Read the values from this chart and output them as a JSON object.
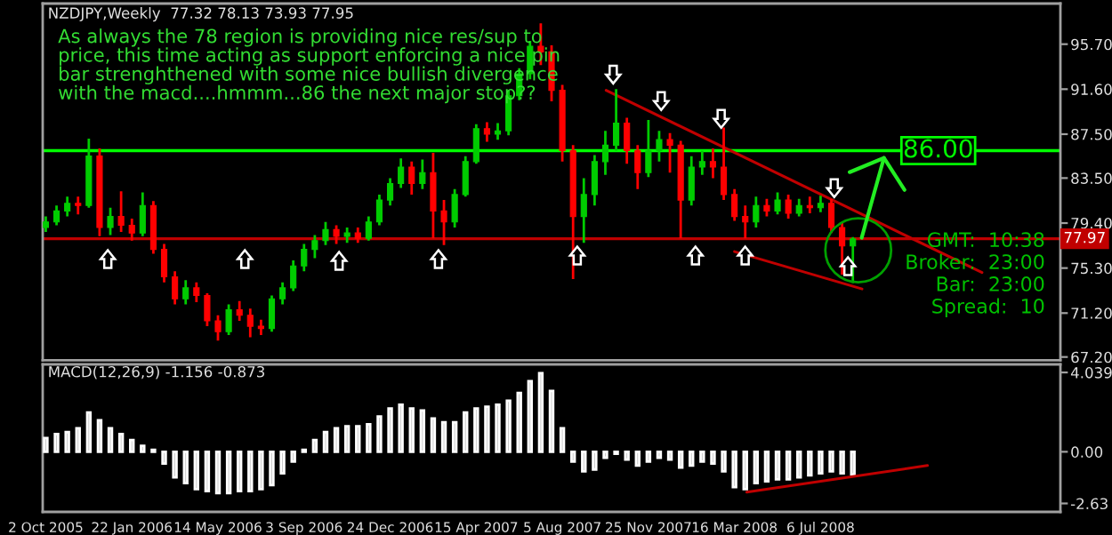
{
  "chart_data": [
    {
      "type": "candlestick",
      "title": "NZDJPY,Weekly  77.32 78.13 73.93 77.95",
      "x": [
        "2005-10-02",
        "2005-10-16",
        "2005-10-30",
        "2005-11-13",
        "2005-11-27",
        "2005-12-11",
        "2005-12-25",
        "2006-01-08",
        "2006-01-22",
        "2006-02-05",
        "2006-02-19",
        "2006-03-05",
        "2006-03-19",
        "2006-04-02",
        "2006-04-16",
        "2006-04-30",
        "2006-05-14",
        "2006-05-28",
        "2006-06-11",
        "2006-06-25",
        "2006-07-09",
        "2006-07-23",
        "2006-08-06",
        "2006-08-20",
        "2006-09-03",
        "2006-09-17",
        "2006-10-01",
        "2006-10-15",
        "2006-10-29",
        "2006-11-12",
        "2006-11-26",
        "2006-12-10",
        "2006-12-24",
        "2007-01-07",
        "2007-01-21",
        "2007-02-04",
        "2007-02-18",
        "2007-03-04",
        "2007-03-18",
        "2007-04-01",
        "2007-04-15",
        "2007-04-29",
        "2007-05-13",
        "2007-05-27",
        "2007-06-10",
        "2007-06-24",
        "2007-07-08",
        "2007-07-22",
        "2007-08-05",
        "2007-08-19",
        "2007-09-02",
        "2007-09-16",
        "2007-09-30",
        "2007-10-14",
        "2007-10-28",
        "2007-11-11",
        "2007-11-25",
        "2007-12-09",
        "2007-12-23",
        "2008-01-06",
        "2008-01-20",
        "2008-02-03",
        "2008-02-17",
        "2008-03-02",
        "2008-03-16",
        "2008-03-30",
        "2008-04-13",
        "2008-04-27",
        "2008-05-11",
        "2008-05-25",
        "2008-06-08",
        "2008-06-22",
        "2008-07-06",
        "2008-07-20",
        "2008-08-03",
        "2008-08-17"
      ],
      "ohlc": [
        [
          79.0,
          80.0,
          78.6,
          79.5
        ],
        [
          79.5,
          81.0,
          79.2,
          80.5
        ],
        [
          80.5,
          81.8,
          80.0,
          81.2
        ],
        [
          81.2,
          81.8,
          80.2,
          81.0
        ],
        [
          81.0,
          87.1,
          80.8,
          85.5
        ],
        [
          85.5,
          86.2,
          78.2,
          79.0
        ],
        [
          79.0,
          80.8,
          78.3,
          80.0
        ],
        [
          80.0,
          82.3,
          78.6,
          79.2
        ],
        [
          79.2,
          79.8,
          77.8,
          78.5
        ],
        [
          78.5,
          82.2,
          78.2,
          81.0
        ],
        [
          81.0,
          81.4,
          76.6,
          77.0
        ],
        [
          77.0,
          77.5,
          74.0,
          74.5
        ],
        [
          74.5,
          75.0,
          72.0,
          72.5
        ],
        [
          72.5,
          74.2,
          72.0,
          73.5
        ],
        [
          73.5,
          74.0,
          72.2,
          72.8
        ],
        [
          72.8,
          73.0,
          70.0,
          70.5
        ],
        [
          70.5,
          71.0,
          68.7,
          69.5
        ],
        [
          69.5,
          72.0,
          69.2,
          71.5
        ],
        [
          71.5,
          72.3,
          70.5,
          71.0
        ],
        [
          71.0,
          71.6,
          69.0,
          70.0
        ],
        [
          70.0,
          70.6,
          69.2,
          69.8
        ],
        [
          69.8,
          72.8,
          69.5,
          72.5
        ],
        [
          72.5,
          74.0,
          72.0,
          73.5
        ],
        [
          73.5,
          76.0,
          73.2,
          75.5
        ],
        [
          75.5,
          77.5,
          75.0,
          77.0
        ],
        [
          77.0,
          78.3,
          76.2,
          77.8
        ],
        [
          77.8,
          79.5,
          77.4,
          78.8
        ],
        [
          78.8,
          79.2,
          77.5,
          78.2
        ],
        [
          78.2,
          79.0,
          77.6,
          78.5
        ],
        [
          78.5,
          79.0,
          77.6,
          78.0
        ],
        [
          78.0,
          80.0,
          77.8,
          79.5
        ],
        [
          79.5,
          82.0,
          79.2,
          81.5
        ],
        [
          81.5,
          83.5,
          81.0,
          83.0
        ],
        [
          83.0,
          85.3,
          82.6,
          84.5
        ],
        [
          84.5,
          85.0,
          82.0,
          83.0
        ],
        [
          83.0,
          85.2,
          82.5,
          84.0
        ],
        [
          84.0,
          85.8,
          78.0,
          80.5
        ],
        [
          80.5,
          81.5,
          77.4,
          79.5
        ],
        [
          79.5,
          82.5,
          79.0,
          82.0
        ],
        [
          82.0,
          85.5,
          81.8,
          85.0
        ],
        [
          85.0,
          88.4,
          84.8,
          88.0
        ],
        [
          88.0,
          88.6,
          86.8,
          87.5
        ],
        [
          87.5,
          88.5,
          87.0,
          87.8
        ],
        [
          87.8,
          91.5,
          87.4,
          91.0
        ],
        [
          91.0,
          93.5,
          90.6,
          93.0
        ],
        [
          93.0,
          96.0,
          92.5,
          95.5
        ],
        [
          95.5,
          97.6,
          93.8,
          95.0
        ],
        [
          95.0,
          95.6,
          90.5,
          91.5
        ],
        [
          91.5,
          92.0,
          85.0,
          86.0
        ],
        [
          86.0,
          86.5,
          74.3,
          80.0
        ],
        [
          80.0,
          83.5,
          77.6,
          82.0
        ],
        [
          82.0,
          85.6,
          81.0,
          85.0
        ],
        [
          85.0,
          87.8,
          83.8,
          86.5
        ],
        [
          86.5,
          91.6,
          86.0,
          88.5
        ],
        [
          88.5,
          89.0,
          84.8,
          86.0
        ],
        [
          86.0,
          86.5,
          82.5,
          84.0
        ],
        [
          84.0,
          88.8,
          83.6,
          86.0
        ],
        [
          86.0,
          87.8,
          85.0,
          87.0
        ],
        [
          87.0,
          87.6,
          84.0,
          86.5
        ],
        [
          86.5,
          86.9,
          78.0,
          81.5
        ],
        [
          81.5,
          85.5,
          81.0,
          84.5
        ],
        [
          84.5,
          86.0,
          83.8,
          85.0
        ],
        [
          85.0,
          86.2,
          83.5,
          84.5
        ],
        [
          84.5,
          88.1,
          81.5,
          82.0
        ],
        [
          82.0,
          82.5,
          79.6,
          80.0
        ],
        [
          80.0,
          81.0,
          78.0,
          79.5
        ],
        [
          79.5,
          81.8,
          79.0,
          81.0
        ],
        [
          81.0,
          81.6,
          80.0,
          80.5
        ],
        [
          80.5,
          82.2,
          80.2,
          81.5
        ],
        [
          81.5,
          82.0,
          79.8,
          80.3
        ],
        [
          80.3,
          81.6,
          80.0,
          81.0
        ],
        [
          81.0,
          81.8,
          80.3,
          80.8
        ],
        [
          80.8,
          81.9,
          80.4,
          81.2
        ],
        [
          81.2,
          81.6,
          78.5,
          79.0
        ],
        [
          79.0,
          79.4,
          74.7,
          77.32
        ],
        [
          77.32,
          78.13,
          73.93,
          77.95
        ]
      ],
      "colors": [
        "#00cc00",
        "#00cc00",
        "#00cc00",
        "#ff0000",
        "#00cc00",
        "#ff0000",
        "#00cc00",
        "#ff0000",
        "#ff0000",
        "#00cc00",
        "#ff0000",
        "#ff0000",
        "#ff0000",
        "#00cc00",
        "#ff0000",
        "#ff0000",
        "#ff0000",
        "#00cc00",
        "#ff0000",
        "#ff0000",
        "#ff0000",
        "#00cc00",
        "#00cc00",
        "#00cc00",
        "#00cc00",
        "#00cc00",
        "#00cc00",
        "#ff0000",
        "#00cc00",
        "#ff0000",
        "#00cc00",
        "#00cc00",
        "#00cc00",
        "#00cc00",
        "#ff0000",
        "#00cc00",
        "#ff0000",
        "#ff0000",
        "#00cc00",
        "#00cc00",
        "#00cc00",
        "#ff0000",
        "#00cc00",
        "#00cc00",
        "#00cc00",
        "#00cc00",
        "#ff0000",
        "#ff0000",
        "#ff0000",
        "#ff0000",
        "#00cc00",
        "#00cc00",
        "#00cc00",
        "#00cc00",
        "#ff0000",
        "#ff0000",
        "#00cc00",
        "#00cc00",
        "#ff0000",
        "#ff0000",
        "#00cc00",
        "#00cc00",
        "#ff0000",
        "#ff0000",
        "#ff0000",
        "#ff0000",
        "#00cc00",
        "#ff0000",
        "#00cc00",
        "#ff0000",
        "#00cc00",
        "#ff0000",
        "#00cc00",
        "#ff0000",
        "#ff0000",
        "#00cc00"
      ],
      "series": [
        {
          "type": "line",
          "x": [
            "2007-10-01",
            "2009-02-01"
          ],
          "values": [
            91.5,
            74.9
          ],
          "color": "#c00000"
        },
        {
          "type": "line",
          "x": [
            "2008-03-16",
            "2008-08-29"
          ],
          "values": [
            76.8,
            73.4
          ],
          "color": "#c00000"
        }
      ],
      "xlim": [
        "2005-09-28",
        "2009-05-14"
      ],
      "ylim": [
        66.9,
        99.4
      ],
      "yticks": [
        {
          "value": 95.7,
          "label": "95.70"
        },
        {
          "value": 91.6,
          "label": "91.60"
        },
        {
          "value": 87.5,
          "label": "87.50"
        },
        {
          "value": 83.5,
          "label": "83.50"
        },
        {
          "value": 79.4,
          "label": "79.40"
        },
        {
          "value": 75.3,
          "label": "75.30"
        },
        {
          "value": 71.2,
          "label": "71.20"
        },
        {
          "value": 67.2,
          "label": "67.20"
        }
      ],
      "ref_lines": [
        {
          "axis": "y",
          "value": 77.97,
          "label": "77.97",
          "color": "#c00000"
        },
        {
          "axis": "y",
          "value": 86.0,
          "label": "86.00",
          "color": "#00ff00"
        }
      ],
      "annotations": [
        "As always the 78 region is providing nice res/sup to\nprice, this time acting as support enforcing a nice pin\nbar strenghthened with some nice bullish divergence\nwith the macd....hmmm...86 the next major stop??",
        "GMT:  10:38",
        "Broker:  23:00",
        "Bar:  23:00",
        "Spread:  10"
      ],
      "tick_labels": "y"
    },
    {
      "type": "bar",
      "title": "MACD(12,26,9) -1.156 -0.873",
      "x": [
        "2005-10-02",
        "2005-10-16",
        "2005-10-30",
        "2005-11-13",
        "2005-11-27",
        "2005-12-11",
        "2005-12-25",
        "2006-01-08",
        "2006-01-22",
        "2006-02-05",
        "2006-02-19",
        "2006-03-05",
        "2006-03-19",
        "2006-04-02",
        "2006-04-16",
        "2006-04-30",
        "2006-05-14",
        "2006-05-28",
        "2006-06-11",
        "2006-06-25",
        "2006-07-09",
        "2006-07-23",
        "2006-08-06",
        "2006-08-20",
        "2006-09-03",
        "2006-09-17",
        "2006-10-01",
        "2006-10-15",
        "2006-10-29",
        "2006-11-12",
        "2006-11-26",
        "2006-12-10",
        "2006-12-24",
        "2007-01-07",
        "2007-01-21",
        "2007-02-04",
        "2007-02-18",
        "2007-03-04",
        "2007-03-18",
        "2007-04-01",
        "2007-04-15",
        "2007-04-29",
        "2007-05-13",
        "2007-05-27",
        "2007-06-10",
        "2007-06-24",
        "2007-07-08",
        "2007-07-22",
        "2007-08-05",
        "2007-08-19",
        "2007-09-02",
        "2007-09-16",
        "2007-09-30",
        "2007-10-14",
        "2007-10-28",
        "2007-11-11",
        "2007-11-25",
        "2007-12-09",
        "2007-12-23",
        "2008-01-06",
        "2008-01-20",
        "2008-02-03",
        "2008-02-17",
        "2008-03-02",
        "2008-03-16",
        "2008-03-30",
        "2008-04-13",
        "2008-04-27",
        "2008-05-11",
        "2008-05-25",
        "2008-06-08",
        "2008-06-22",
        "2008-07-06",
        "2008-07-20",
        "2008-08-03",
        "2008-08-17"
      ],
      "series": [
        {
          "type": "bar",
          "color": "#c0c0c0",
          "values": [
            0.7,
            0.9,
            1.0,
            1.2,
            2.0,
            1.6,
            1.2,
            0.9,
            0.6,
            0.3,
            0.1,
            -0.6,
            -1.3,
            -1.6,
            -1.9,
            -2.0,
            -2.1,
            -2.1,
            -2.0,
            -2.0,
            -1.9,
            -1.7,
            -1.1,
            -0.5,
            0.1,
            0.6,
            1.0,
            1.2,
            1.3,
            1.3,
            1.4,
            1.8,
            2.2,
            2.4,
            2.2,
            2.1,
            1.7,
            1.5,
            1.5,
            2.0,
            2.2,
            2.3,
            2.4,
            2.6,
            3.0,
            3.6,
            4.0,
            3.1,
            1.2,
            -0.5,
            -1.0,
            -0.9,
            -0.3,
            -0.1,
            -0.4,
            -0.7,
            -0.5,
            -0.3,
            -0.4,
            -0.8,
            -0.7,
            -0.5,
            -0.6,
            -1.0,
            -1.8,
            -1.9,
            -1.6,
            -1.5,
            -1.4,
            -1.4,
            -1.3,
            -1.2,
            -1.1,
            -1.0,
            -1.1,
            -1.156
          ]
        },
        {
          "type": "line",
          "x": [
            "2008-04-01",
            "2008-11-22"
          ],
          "values": [
            -2.05,
            -0.7
          ],
          "color": "#c00000"
        }
      ],
      "xlim": [
        "2005-09-28",
        "2009-05-14"
      ],
      "ylim": [
        -3.06,
        4.45
      ],
      "yticks": [
        {
          "value": 4.039,
          "label": "4.039"
        },
        {
          "value": 0,
          "label": "0.00"
        },
        {
          "value": -2.63,
          "label": "-2.63"
        }
      ],
      "xticks": [
        {
          "value": "2005-10-02",
          "label": "2 Oct 2005"
        },
        {
          "value": "2006-01-22",
          "label": "22 Jan 2006"
        },
        {
          "value": "2006-05-14",
          "label": "14 May 2006"
        },
        {
          "value": "2006-09-03",
          "label": "3 Sep 2006"
        },
        {
          "value": "2006-12-24",
          "label": "24 Dec 2006"
        },
        {
          "value": "2007-04-15",
          "label": "15 Apr 2007"
        },
        {
          "value": "2007-08-05",
          "label": "5 Aug 2007"
        },
        {
          "value": "2007-11-25",
          "label": "25 Nov 2007"
        },
        {
          "value": "2008-03-16",
          "label": "16 Mar 2008"
        },
        {
          "value": "2008-07-06",
          "label": "6 Jul 2008"
        }
      ]
    }
  ]
}
